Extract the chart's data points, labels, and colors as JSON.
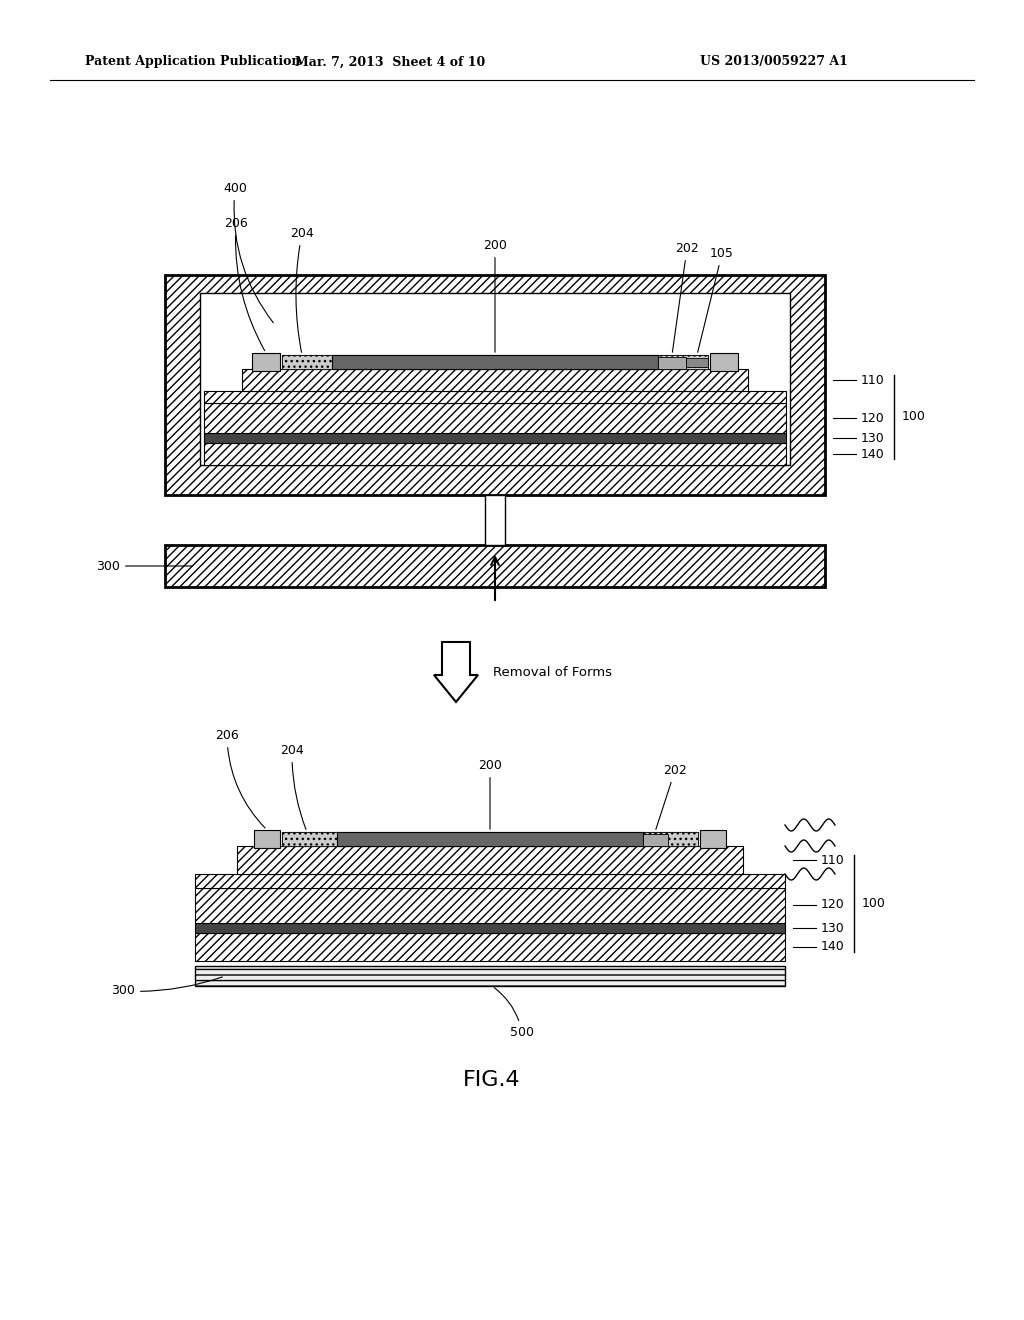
{
  "bg_color": "#ffffff",
  "line_color": "#000000",
  "header_left": "Patent Application Publication",
  "header_mid": "Mar. 7, 2013  Sheet 4 of 10",
  "header_right": "US 2013/0059227 A1",
  "fig_label": "FIG.4",
  "arrow_text": "Removal of Forms"
}
